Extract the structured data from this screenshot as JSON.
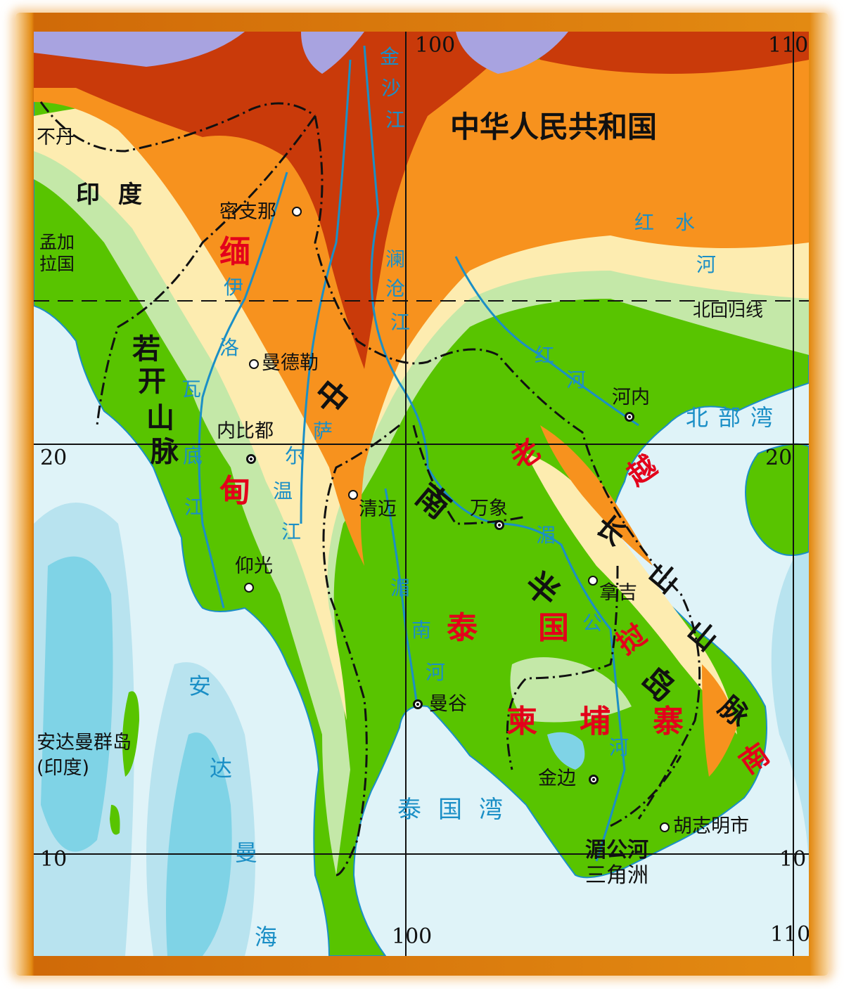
{
  "colors": {
    "sea": "#dff3f8",
    "sea_mid": "#b8e3ef",
    "sea_deep": "#7fd3e6",
    "lowland": "#58c400",
    "plain": "#c4e8a8",
    "hill": "#fdecb0",
    "upland": "#f7921e",
    "mountain": "#c93a0a",
    "high": "#a8a3e0",
    "country_label": "#e3001b",
    "water_label": "#1b8fc6",
    "frame": "#e38a12"
  },
  "grid": {
    "lon_100_top": "100",
    "lon_110_top": "110",
    "lat_20_left": "20",
    "lat_20_right": "20",
    "lat_10_left": "10",
    "lat_10_right": "10",
    "lon_100_bottom": "100",
    "lon_110_bottom": "110",
    "tropic": "北回归线"
  },
  "countries": {
    "china": "中华人民共和国",
    "bhutan": "不丹",
    "india": "印度",
    "bangladesh_1": "孟加",
    "bangladesh_2": "拉国",
    "myanmar": "缅甸",
    "thailand": "泰国",
    "laos": "老挝",
    "vietnam": "越南",
    "cambodia": "柬埔寨"
  },
  "places": {
    "myitkyina": "密支那",
    "mandalay": "曼德勒",
    "naypyidaw": "内比都",
    "chiang_mai": "清迈",
    "yangon": "仰光",
    "hanoi": "河内",
    "vientiane": "万象",
    "thakhek": "拿吉",
    "bangkok": "曼谷",
    "phnom_penh": "金边",
    "ho_chi_minh": "胡志明市"
  },
  "rivers": {
    "jinsha": "金沙江",
    "lancang": "澜沧江",
    "hongshui": "红水河",
    "red": "红河",
    "irrawaddy": "伊洛瓦底江",
    "salween": "萨尔温江",
    "mekong": "湄公河",
    "chao_phraya": "湄南河"
  },
  "seas": {
    "tonkin": "北部湾",
    "thailand_gulf": "泰国湾",
    "andaman": "安达曼海"
  },
  "landforms": {
    "arakan": "若开山脉",
    "indochina": "中南半岛",
    "annamite": "长山山脉",
    "delta_1": "湄公河",
    "delta_2": "三角洲",
    "andaman_islands": "安达曼群岛",
    "andaman_islands_note": "(印度)"
  }
}
